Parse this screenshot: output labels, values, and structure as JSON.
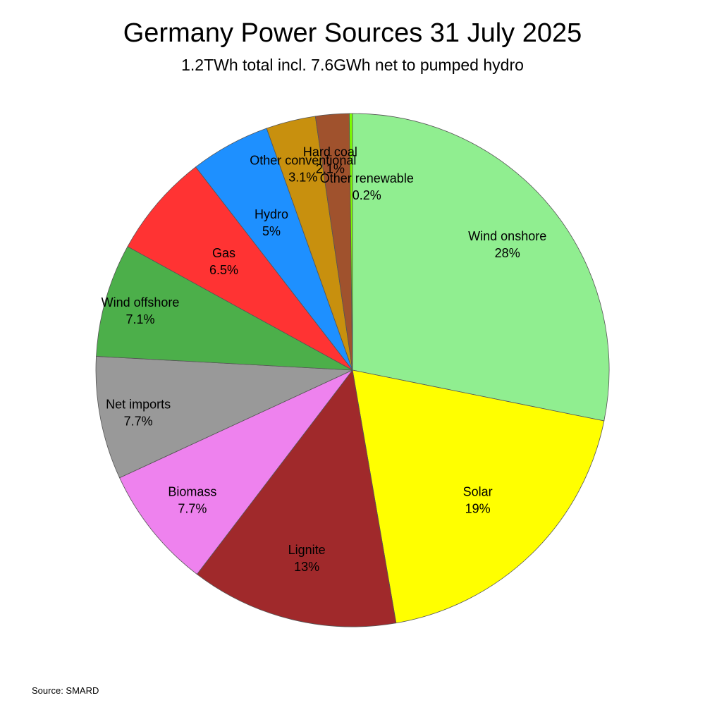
{
  "chart_data": {
    "type": "pie",
    "title": "Germany Power Sources 31 July 2025",
    "subtitle": "1.2TWh total incl. 7.6GWh net to pumped hydro",
    "source": "Source: SMARD",
    "start": "top",
    "direction": "clockwise",
    "slices": [
      {
        "name": "Wind onshore",
        "label": "28%",
        "value": 28.0,
        "color": "#90EE90"
      },
      {
        "name": "Solar",
        "label": "19%",
        "value": 19.0,
        "color": "#FFFF00"
      },
      {
        "name": "Lignite",
        "label": "13%",
        "value": 13.0,
        "color": "#A0292B"
      },
      {
        "name": "Biomass",
        "label": "7.7%",
        "value": 7.7,
        "color": "#EE82EE"
      },
      {
        "name": "Net imports",
        "label": "7.7%",
        "value": 7.7,
        "color": "#999999"
      },
      {
        "name": "Wind offshore",
        "label": "7.1%",
        "value": 7.1,
        "color": "#4CAF4A"
      },
      {
        "name": "Gas",
        "label": "6.5%",
        "value": 6.5,
        "color": "#FF3333"
      },
      {
        "name": "Hydro",
        "label": "5%",
        "value": 5.0,
        "color": "#1E90FF"
      },
      {
        "name": "Other conventional",
        "label": "3.1%",
        "value": 3.1,
        "color": "#C8900E"
      },
      {
        "name": "Hard coal",
        "label": "2.1%",
        "value": 2.1,
        "color": "#A0522D"
      },
      {
        "name": "Other renewable",
        "label": "0.2%",
        "value": 0.2,
        "color": "#7CFC00"
      }
    ]
  }
}
